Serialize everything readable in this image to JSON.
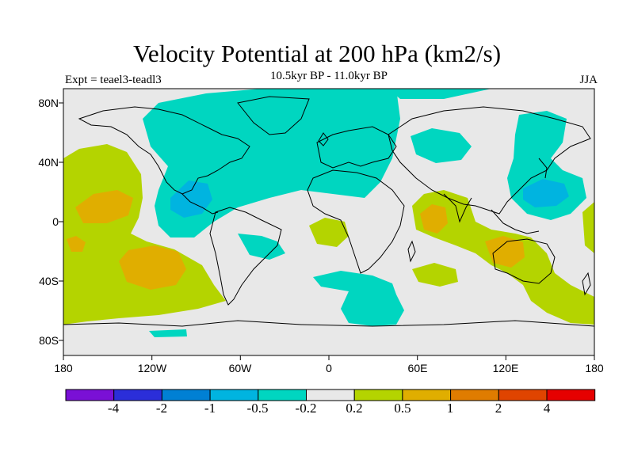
{
  "header": {
    "title": "Velocity Potential at 200 hPa (km2/s)",
    "subtitle": "10.5kyr BP - 11.0kyr BP",
    "experiment": "Expt = teael3-teadl3",
    "season": "JJA"
  },
  "axes": {
    "lat_labels": [
      "80N",
      "40N",
      "0",
      "40S",
      "80S"
    ],
    "lon_labels": [
      "180",
      "120W",
      "60W",
      "0",
      "60E",
      "120E",
      "180"
    ]
  },
  "colorbar": {
    "labels": [
      "-4",
      "-2",
      "-1",
      "-0.5",
      "-0.2",
      "0.2",
      "0.5",
      "1",
      "2",
      "4"
    ],
    "colors": [
      "#7a10d6",
      "#2b2ed9",
      "#0080d4",
      "#00b4e0",
      "#00d6c0",
      "#e8e8e8",
      "#b4d400",
      "#e0ae00",
      "#e07c00",
      "#e04400",
      "#e60000"
    ]
  },
  "palette": {
    "neutral": "#e8e8e8",
    "teal": "#00d6c0",
    "cyan": "#00b4e0",
    "lime": "#b4d400",
    "orange": "#e0ae00"
  }
}
